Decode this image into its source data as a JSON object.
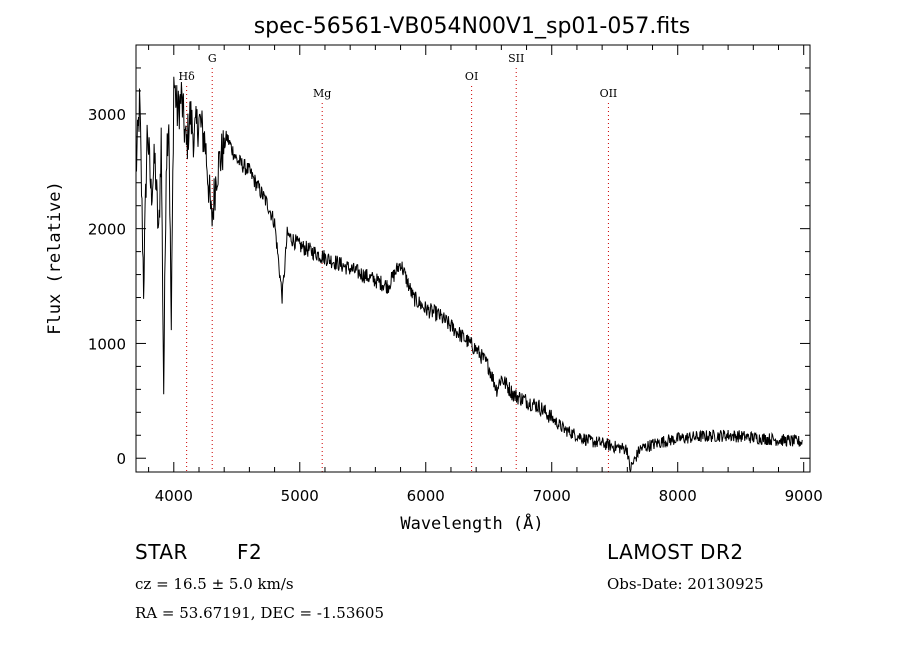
{
  "chart_data": {
    "type": "line",
    "title": "spec-56561-VB054N00V1_sp01-057.fits",
    "xlabel": "Wavelength (Å)",
    "ylabel": "Flux (relative)",
    "xlim": [
      3700,
      9050
    ],
    "ylim": [
      -120,
      3600
    ],
    "xticks": [
      4000,
      5000,
      6000,
      7000,
      8000,
      9000
    ],
    "yticks": [
      0,
      1000,
      2000,
      3000
    ],
    "lines": [
      {
        "label": "Hδ",
        "wavelength": 4102,
        "label_level": "high"
      },
      {
        "label": "G",
        "wavelength": 4305,
        "label_level": "top"
      },
      {
        "label": "Mg",
        "wavelength": 5178,
        "label_level": "low"
      },
      {
        "label": "OI",
        "wavelength": 6364,
        "label_level": "high"
      },
      {
        "label": "SII",
        "wavelength": 6718,
        "label_level": "top"
      },
      {
        "label": "OII",
        "wavelength": 7450,
        "label_level": "low"
      }
    ],
    "spectrum": {
      "x": [
        3700,
        3730,
        3760,
        3790,
        3820,
        3850,
        3880,
        3900,
        3920,
        3940,
        3960,
        3980,
        4000,
        4030,
        4060,
        4100,
        4130,
        4160,
        4200,
        4250,
        4300,
        4340,
        4380,
        4420,
        4460,
        4500,
        4550,
        4600,
        4650,
        4700,
        4750,
        4800,
        4861,
        4900,
        4950,
        5000,
        5100,
        5200,
        5300,
        5400,
        5500,
        5600,
        5700,
        5800,
        5900,
        6000,
        6100,
        6200,
        6300,
        6400,
        6500,
        6563,
        6600,
        6700,
        6800,
        6900,
        7000,
        7100,
        7200,
        7300,
        7400,
        7500,
        7600,
        7620,
        7700,
        7800,
        7900,
        8000,
        8200,
        8400,
        8600,
        8800,
        9000
      ],
      "y": [
        2500,
        3100,
        1500,
        2900,
        2300,
        2600,
        1900,
        2800,
        600,
        2600,
        3000,
        1100,
        3300,
        3000,
        3150,
        2700,
        3000,
        2800,
        2950,
        2750,
        2050,
        2500,
        2650,
        2800,
        2700,
        2600,
        2550,
        2500,
        2400,
        2300,
        2200,
        2050,
        1400,
        1950,
        1900,
        1850,
        1800,
        1750,
        1700,
        1650,
        1600,
        1550,
        1500,
        1700,
        1400,
        1300,
        1250,
        1150,
        1050,
        950,
        800,
        600,
        700,
        550,
        500,
        450,
        350,
        250,
        200,
        150,
        130,
        100,
        80,
        -100,
        80,
        120,
        150,
        170,
        190,
        200,
        180,
        160,
        140
      ]
    },
    "grid": false,
    "legend": "none",
    "colors": {
      "spectrum": "#000000",
      "lines": "#cc0000",
      "axes": "#000000"
    }
  },
  "footer": {
    "object_class": "STAR",
    "spectral_type": "F2",
    "survey": "LAMOST DR2",
    "cz": "cz = 16.5 ± 5.0 km/s",
    "obs_date": "Obs-Date: 20130925",
    "radec": "RA =  53.67191, DEC =  -1.53605"
  }
}
